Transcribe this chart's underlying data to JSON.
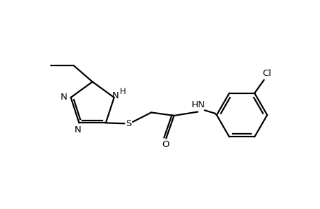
{
  "bg_color": "#ffffff",
  "line_color": "#000000",
  "line_width": 1.6,
  "font_size": 9.5,
  "fig_width": 4.6,
  "fig_height": 3.0,
  "dpi": 100,
  "xlim": [
    0,
    10
  ],
  "ylim": [
    0,
    6.5
  ]
}
